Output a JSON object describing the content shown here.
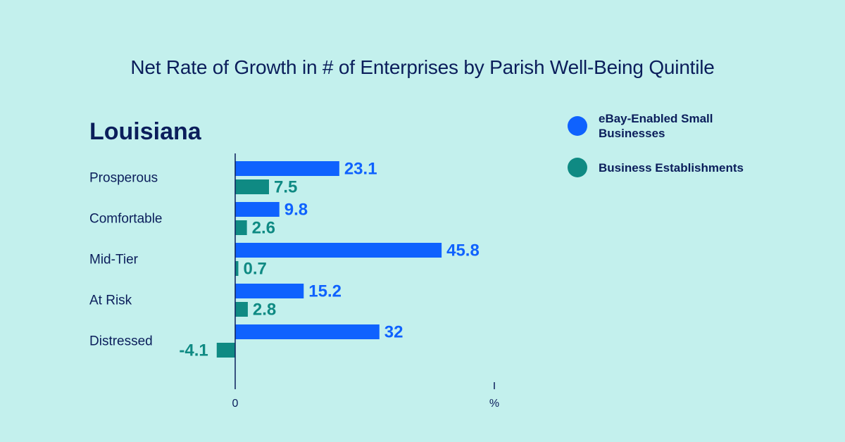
{
  "chart_data": {
    "type": "bar",
    "orientation": "horizontal",
    "title": "Net Rate of Growth in # of Enterprises by Parish Well-Being Quintile",
    "subtitle": "Louisiana",
    "categories": [
      "Prosperous",
      "Comfortable",
      "Mid-Tier",
      "At Risk",
      "Distressed"
    ],
    "series": [
      {
        "name": "eBay-Enabled Small Businesses",
        "color": "#0f62fe",
        "values": [
          23.1,
          9.8,
          45.8,
          15.2,
          32
        ]
      },
      {
        "name": "Business Establishments",
        "color": "#0f8a83",
        "values": [
          7.5,
          2.6,
          0.7,
          2.8,
          -4.1
        ]
      }
    ],
    "data_labels": [
      [
        "23.1",
        "9.8",
        "45.8",
        "15.2",
        "32"
      ],
      [
        "7.5",
        "2.6",
        "0.7",
        "2.8",
        "-4.1"
      ]
    ],
    "xlim": [
      -4.1,
      57.5
    ],
    "x_tick_labels": {
      "zero": "0",
      "unit": "%"
    },
    "legend_position": "top-right",
    "grid": false
  }
}
